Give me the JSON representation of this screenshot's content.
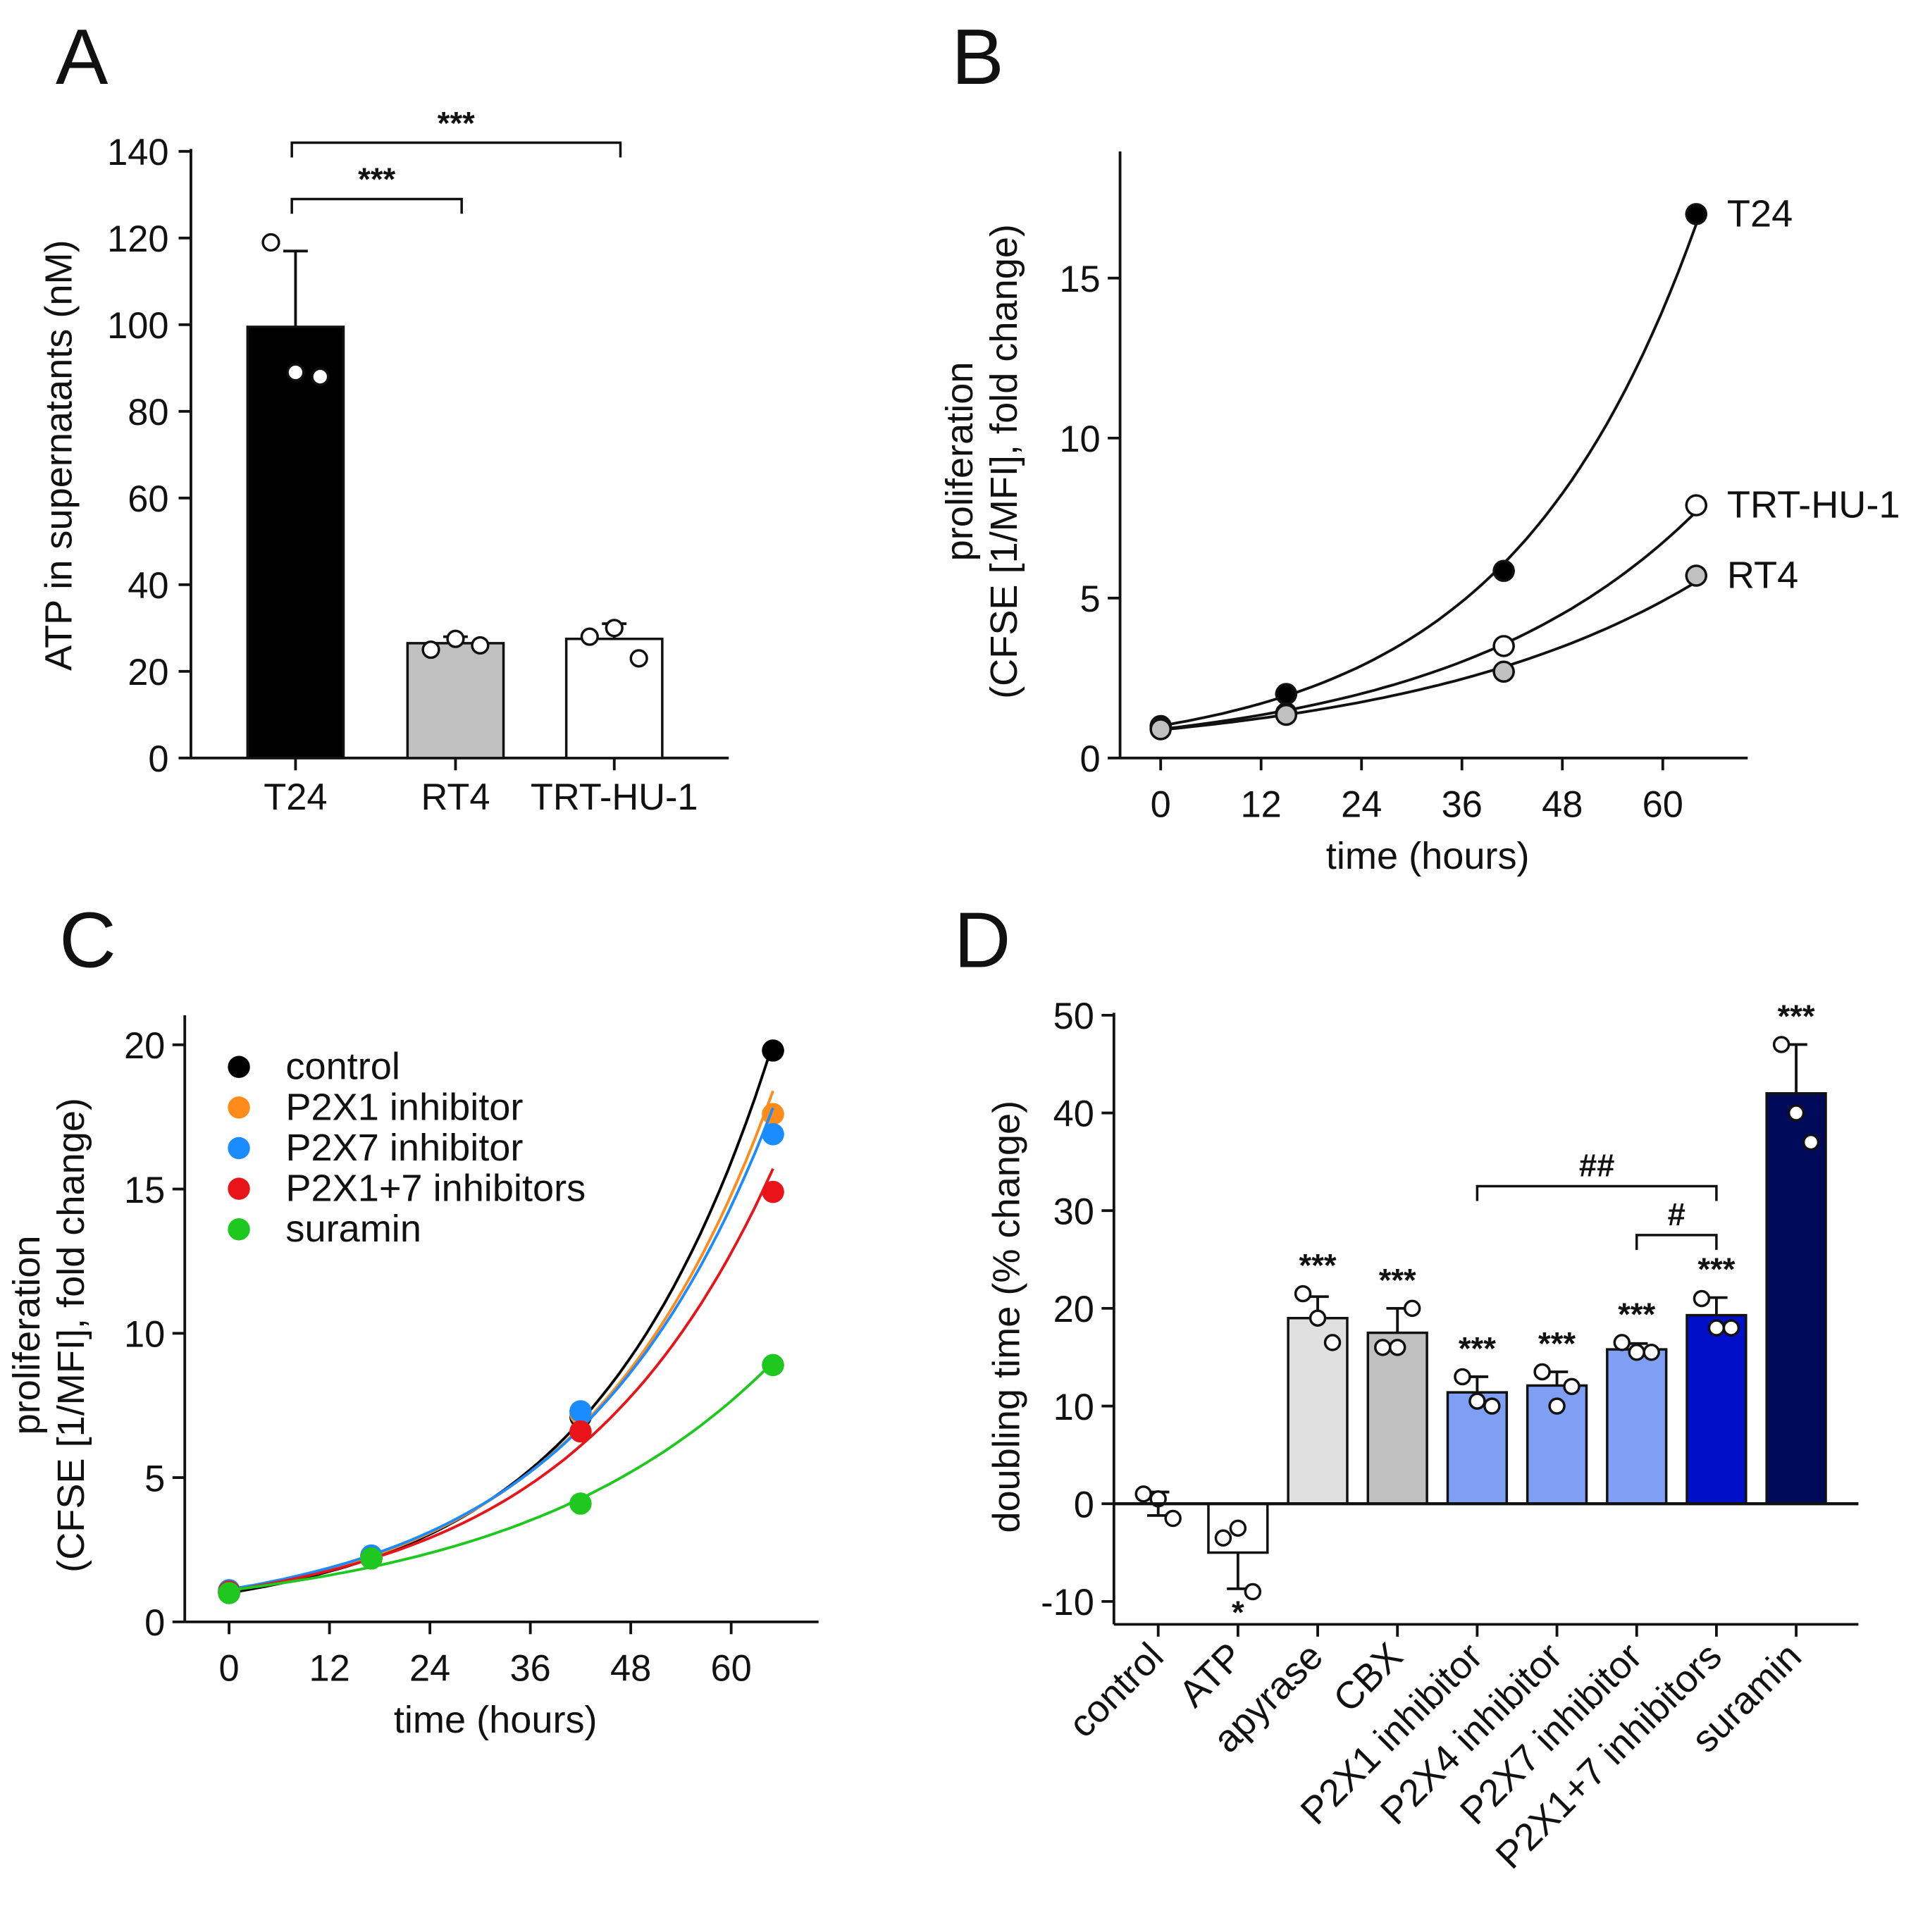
{
  "chart_data": [
    {
      "panel": "A",
      "type": "bar",
      "ylabel": "ATP in supernatants (nM)",
      "ylim": [
        0,
        140
      ],
      "yticks": [
        0,
        20,
        40,
        60,
        80,
        100,
        120,
        140
      ],
      "categories": [
        "T24",
        "RT4",
        "TRT-HU-1"
      ],
      "values": [
        99.5,
        26.5,
        27.5
      ],
      "errors": [
        17.5,
        1.5,
        3.5
      ],
      "points": [
        [
          119,
          89,
          88
        ],
        [
          25,
          27.5,
          26
        ],
        [
          28,
          30,
          23
        ]
      ],
      "colors": [
        "#000000",
        "#c0c0c0",
        "#ffffff"
      ],
      "brackets": [
        {
          "from": 0,
          "to": 1,
          "y": 129,
          "label": "***"
        },
        {
          "from": 0,
          "to": 2,
          "y": 142,
          "label": "***"
        }
      ]
    },
    {
      "panel": "B",
      "type": "line",
      "xlabel": "time (hours)",
      "ylabel": [
        "proliferation",
        "(CFSE [1/MFI], fold change)"
      ],
      "xlim": [
        -4,
        70
      ],
      "ylim": [
        0,
        19
      ],
      "xticks": [
        0,
        12,
        24,
        36,
        48,
        60
      ],
      "yticks": [
        0,
        5,
        10,
        15
      ],
      "series": [
        {
          "name": "T24",
          "x": [
            0,
            15,
            41,
            64
          ],
          "y": [
            1,
            2,
            5.85,
            17
          ],
          "fill": "#000000"
        },
        {
          "name": "TRT-HU-1",
          "x": [
            0,
            15,
            41,
            64
          ],
          "y": [
            0.95,
            1.4,
            3.5,
            7.9
          ],
          "fill": "#ffffff"
        },
        {
          "name": "RT4",
          "x": [
            0,
            15,
            41,
            64
          ],
          "y": [
            0.9,
            1.35,
            2.7,
            5.7
          ],
          "fill": "#c0c0c0"
        }
      ]
    },
    {
      "panel": "C",
      "type": "line",
      "xlabel": "time (hours)",
      "ylabel": [
        "proliferation",
        "(CFSE [1/MFI], fold change)"
      ],
      "xlim": [
        -5,
        70
      ],
      "ylim": [
        0,
        21
      ],
      "xticks": [
        0,
        12,
        24,
        36,
        48,
        60
      ],
      "yticks": [
        0,
        5,
        10,
        15,
        20
      ],
      "legend": "top-left",
      "series": [
        {
          "name": "control",
          "x": [
            0,
            17,
            42,
            65
          ],
          "y": [
            1,
            2.2,
            7.1,
            19.8
          ],
          "color": "#000000"
        },
        {
          "name": "P2X1 inhibitor",
          "x": [
            0,
            17,
            42,
            65
          ],
          "y": [
            1.05,
            2.3,
            7.2,
            17.6
          ],
          "color": "#ff8c1a"
        },
        {
          "name": "P2X7 inhibitor",
          "x": [
            0,
            17,
            42,
            65
          ],
          "y": [
            1.1,
            2.3,
            7.3,
            16.9
          ],
          "color": "#1a8cff"
        },
        {
          "name": "P2X1+7 inhibitors",
          "x": [
            0,
            17,
            42,
            65
          ],
          "y": [
            1.05,
            2.2,
            6.6,
            14.9
          ],
          "color": "#e8141a"
        },
        {
          "name": "suramin",
          "x": [
            0,
            17,
            42,
            65
          ],
          "y": [
            1,
            2.2,
            4.1,
            8.9
          ],
          "color": "#1ec81e"
        }
      ]
    },
    {
      "panel": "D",
      "type": "bar",
      "ylabel": "doubling time (% change)",
      "ylim": [
        -12,
        50
      ],
      "yticks": [
        -10,
        0,
        10,
        20,
        30,
        40,
        50
      ],
      "categories": [
        "control",
        "ATP",
        "apyrase",
        "CBX",
        "P2X1 inhibitor",
        "P2X4 inhibitor",
        "P2X7 inhibitor",
        "P2X1+7 inhibitors",
        "suramin"
      ],
      "values": [
        0,
        -5,
        19,
        17.5,
        11.4,
        12.1,
        15.8,
        19.3,
        42
      ],
      "errors": [
        1.2,
        3.7,
        2.2,
        2.5,
        1.6,
        1.4,
        0.6,
        1.8,
        5
      ],
      "points": [
        [
          1,
          0.5,
          -1.5
        ],
        [
          -3.5,
          -2.5,
          -9
        ],
        [
          21.5,
          19,
          16.5
        ],
        [
          16,
          16,
          20
        ],
        [
          13,
          10.5,
          10
        ],
        [
          13.5,
          10,
          12
        ],
        [
          16.5,
          15.5,
          15.5
        ],
        [
          21,
          18,
          18
        ],
        [
          47,
          40,
          37
        ]
      ],
      "colors": [
        "#ffffff",
        "#ffffff",
        "#e0e0e0",
        "#c0c0c0",
        "#7f9ff5",
        "#7f9ff5",
        "#7f9ff5",
        "#0010c8",
        "#000a5a"
      ],
      "significance": [
        "",
        "*",
        "***",
        "***",
        "***",
        "***",
        "***",
        "***",
        "***"
      ],
      "brackets": [
        {
          "from": 4,
          "to": 7,
          "y": 32.5,
          "label": "##"
        },
        {
          "from": 6,
          "to": 7,
          "y": 27.5,
          "label": "#"
        }
      ]
    }
  ]
}
